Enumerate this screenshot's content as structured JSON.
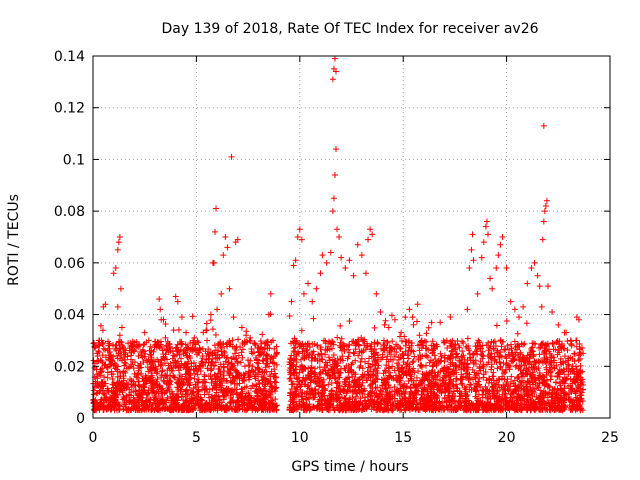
{
  "chart_data": {
    "type": "scatter",
    "title": "Day 139 of 2018, Rate Of TEC Index for receiver av26",
    "xlabel": "GPS time / hours",
    "ylabel": "ROTI / TECUs",
    "xlim": [
      0,
      25
    ],
    "ylim": [
      0,
      0.14
    ],
    "x_ticks": [
      0,
      5,
      10,
      15,
      20,
      25
    ],
    "x_tick_labels": [
      "0",
      "5",
      "10",
      "15",
      "20",
      "25"
    ],
    "y_ticks": [
      0,
      0.02,
      0.04,
      0.06,
      0.08,
      0.1,
      0.12,
      0.14
    ],
    "y_tick_labels": [
      "0",
      "0.02",
      "0.04",
      "0.06",
      "0.08",
      "0.1",
      "0.12",
      "0.14"
    ],
    "grid": true,
    "marker": "+",
    "color": "#ff0000",
    "series": [
      {
        "name": "ROTI",
        "points": [
          [
            0.1,
            0.012
          ],
          [
            0.2,
            0.025
          ],
          [
            0.3,
            0.03
          ],
          [
            0.4,
            0.018
          ],
          [
            0.5,
            0.043
          ],
          [
            0.6,
            0.044
          ],
          [
            0.8,
            0.028
          ],
          [
            0.9,
            0.022
          ],
          [
            1.0,
            0.056
          ],
          [
            1.1,
            0.058
          ],
          [
            1.2,
            0.065
          ],
          [
            1.25,
            0.068
          ],
          [
            1.3,
            0.07
          ],
          [
            1.35,
            0.05
          ],
          [
            1.4,
            0.035
          ],
          [
            1.2,
            0.043
          ],
          [
            1.3,
            0.032
          ],
          [
            1.8,
            0.029
          ],
          [
            2.0,
            0.026
          ],
          [
            2.2,
            0.024
          ],
          [
            2.5,
            0.033
          ],
          [
            2.7,
            0.03
          ],
          [
            2.9,
            0.022
          ],
          [
            3.1,
            0.028
          ],
          [
            3.2,
            0.046
          ],
          [
            3.25,
            0.042
          ],
          [
            3.3,
            0.038
          ],
          [
            3.5,
            0.031
          ],
          [
            3.7,
            0.027
          ],
          [
            3.9,
            0.034
          ],
          [
            4.0,
            0.047
          ],
          [
            4.1,
            0.045
          ],
          [
            4.3,
            0.039
          ],
          [
            4.5,
            0.033
          ],
          [
            4.7,
            0.029
          ],
          [
            4.9,
            0.031
          ],
          [
            5.1,
            0.026
          ],
          [
            5.3,
            0.024
          ],
          [
            5.5,
            0.034
          ],
          [
            5.7,
            0.04
          ],
          [
            5.8,
            0.06
          ],
          [
            5.85,
            0.06
          ],
          [
            5.9,
            0.072
          ],
          [
            5.95,
            0.081
          ],
          [
            6.0,
            0.042
          ],
          [
            6.2,
            0.048
          ],
          [
            6.3,
            0.063
          ],
          [
            6.4,
            0.07
          ],
          [
            6.5,
            0.066
          ],
          [
            6.6,
            0.05
          ],
          [
            6.7,
            0.101
          ],
          [
            6.8,
            0.039
          ],
          [
            6.9,
            0.068
          ],
          [
            7.0,
            0.069
          ],
          [
            7.2,
            0.035
          ],
          [
            7.4,
            0.032
          ],
          [
            7.6,
            0.031
          ],
          [
            7.8,
            0.029
          ],
          [
            8.0,
            0.027
          ],
          [
            8.5,
            0.04
          ],
          [
            8.6,
            0.048
          ],
          [
            8.7,
            0.03
          ],
          [
            8.8,
            0.024
          ],
          [
            9.6,
            0.045
          ],
          [
            9.7,
            0.059
          ],
          [
            9.8,
            0.061
          ],
          [
            9.9,
            0.07
          ],
          [
            10.0,
            0.073
          ],
          [
            10.1,
            0.069
          ],
          [
            10.2,
            0.048
          ],
          [
            10.4,
            0.052
          ],
          [
            10.6,
            0.045
          ],
          [
            10.8,
            0.05
          ],
          [
            11.0,
            0.056
          ],
          [
            11.1,
            0.063
          ],
          [
            11.3,
            0.06
          ],
          [
            11.5,
            0.064
          ],
          [
            11.6,
            0.08
          ],
          [
            11.65,
            0.085
          ],
          [
            11.7,
            0.094
          ],
          [
            11.75,
            0.104
          ],
          [
            11.8,
            0.073
          ],
          [
            11.6,
            0.131
          ],
          [
            11.65,
            0.135
          ],
          [
            11.7,
            0.139
          ],
          [
            11.75,
            0.134
          ],
          [
            11.9,
            0.07
          ],
          [
            12.0,
            0.062
          ],
          [
            12.2,
            0.058
          ],
          [
            12.4,
            0.061
          ],
          [
            12.6,
            0.055
          ],
          [
            12.8,
            0.067
          ],
          [
            13.0,
            0.063
          ],
          [
            13.2,
            0.056
          ],
          [
            13.3,
            0.069
          ],
          [
            13.4,
            0.073
          ],
          [
            13.5,
            0.071
          ],
          [
            13.7,
            0.048
          ],
          [
            13.9,
            0.041
          ],
          [
            14.1,
            0.036
          ],
          [
            14.3,
            0.035
          ],
          [
            14.6,
            0.038
          ],
          [
            14.9,
            0.033
          ],
          [
            15.1,
            0.039
          ],
          [
            15.3,
            0.042
          ],
          [
            15.5,
            0.036
          ],
          [
            15.7,
            0.044
          ],
          [
            15.9,
            0.03
          ],
          [
            16.1,
            0.027
          ],
          [
            16.4,
            0.025
          ],
          [
            16.7,
            0.022
          ],
          [
            17.0,
            0.022
          ],
          [
            17.3,
            0.023
          ],
          [
            17.6,
            0.025
          ],
          [
            17.9,
            0.029
          ],
          [
            18.1,
            0.042
          ],
          [
            18.2,
            0.058
          ],
          [
            18.3,
            0.065
          ],
          [
            18.35,
            0.071
          ],
          [
            18.4,
            0.061
          ],
          [
            18.6,
            0.048
          ],
          [
            18.8,
            0.062
          ],
          [
            18.9,
            0.068
          ],
          [
            19.0,
            0.074
          ],
          [
            19.05,
            0.076
          ],
          [
            19.1,
            0.071
          ],
          [
            19.2,
            0.054
          ],
          [
            19.3,
            0.05
          ],
          [
            19.5,
            0.058
          ],
          [
            19.6,
            0.063
          ],
          [
            19.7,
            0.067
          ],
          [
            19.8,
            0.07
          ],
          [
            20.0,
            0.058
          ],
          [
            20.2,
            0.045
          ],
          [
            20.4,
            0.042
          ],
          [
            20.6,
            0.039
          ],
          [
            20.8,
            0.043
          ],
          [
            21.0,
            0.052
          ],
          [
            21.2,
            0.058
          ],
          [
            21.35,
            0.06
          ],
          [
            21.5,
            0.055
          ],
          [
            21.6,
            0.051
          ],
          [
            21.7,
            0.043
          ],
          [
            21.75,
            0.069
          ],
          [
            21.8,
            0.076
          ],
          [
            21.85,
            0.08
          ],
          [
            21.9,
            0.082
          ],
          [
            21.95,
            0.084
          ],
          [
            21.8,
            0.113
          ],
          [
            22.0,
            0.051
          ],
          [
            22.2,
            0.041
          ],
          [
            22.5,
            0.036
          ],
          [
            22.8,
            0.033
          ],
          [
            23.1,
            0.03
          ],
          [
            23.4,
            0.039
          ],
          [
            23.5,
            0.038
          ],
          [
            23.7,
            0.025
          ]
        ]
      }
    ],
    "background_band": {
      "description": "dense cloud of samples between roughly 0.003 and 0.03 TECU across the observed time ranges",
      "segments": [
        [
          0.0,
          8.9
        ],
        [
          9.5,
          23.7
        ]
      ],
      "base_min": 0.003,
      "base_max": 0.03
    }
  }
}
